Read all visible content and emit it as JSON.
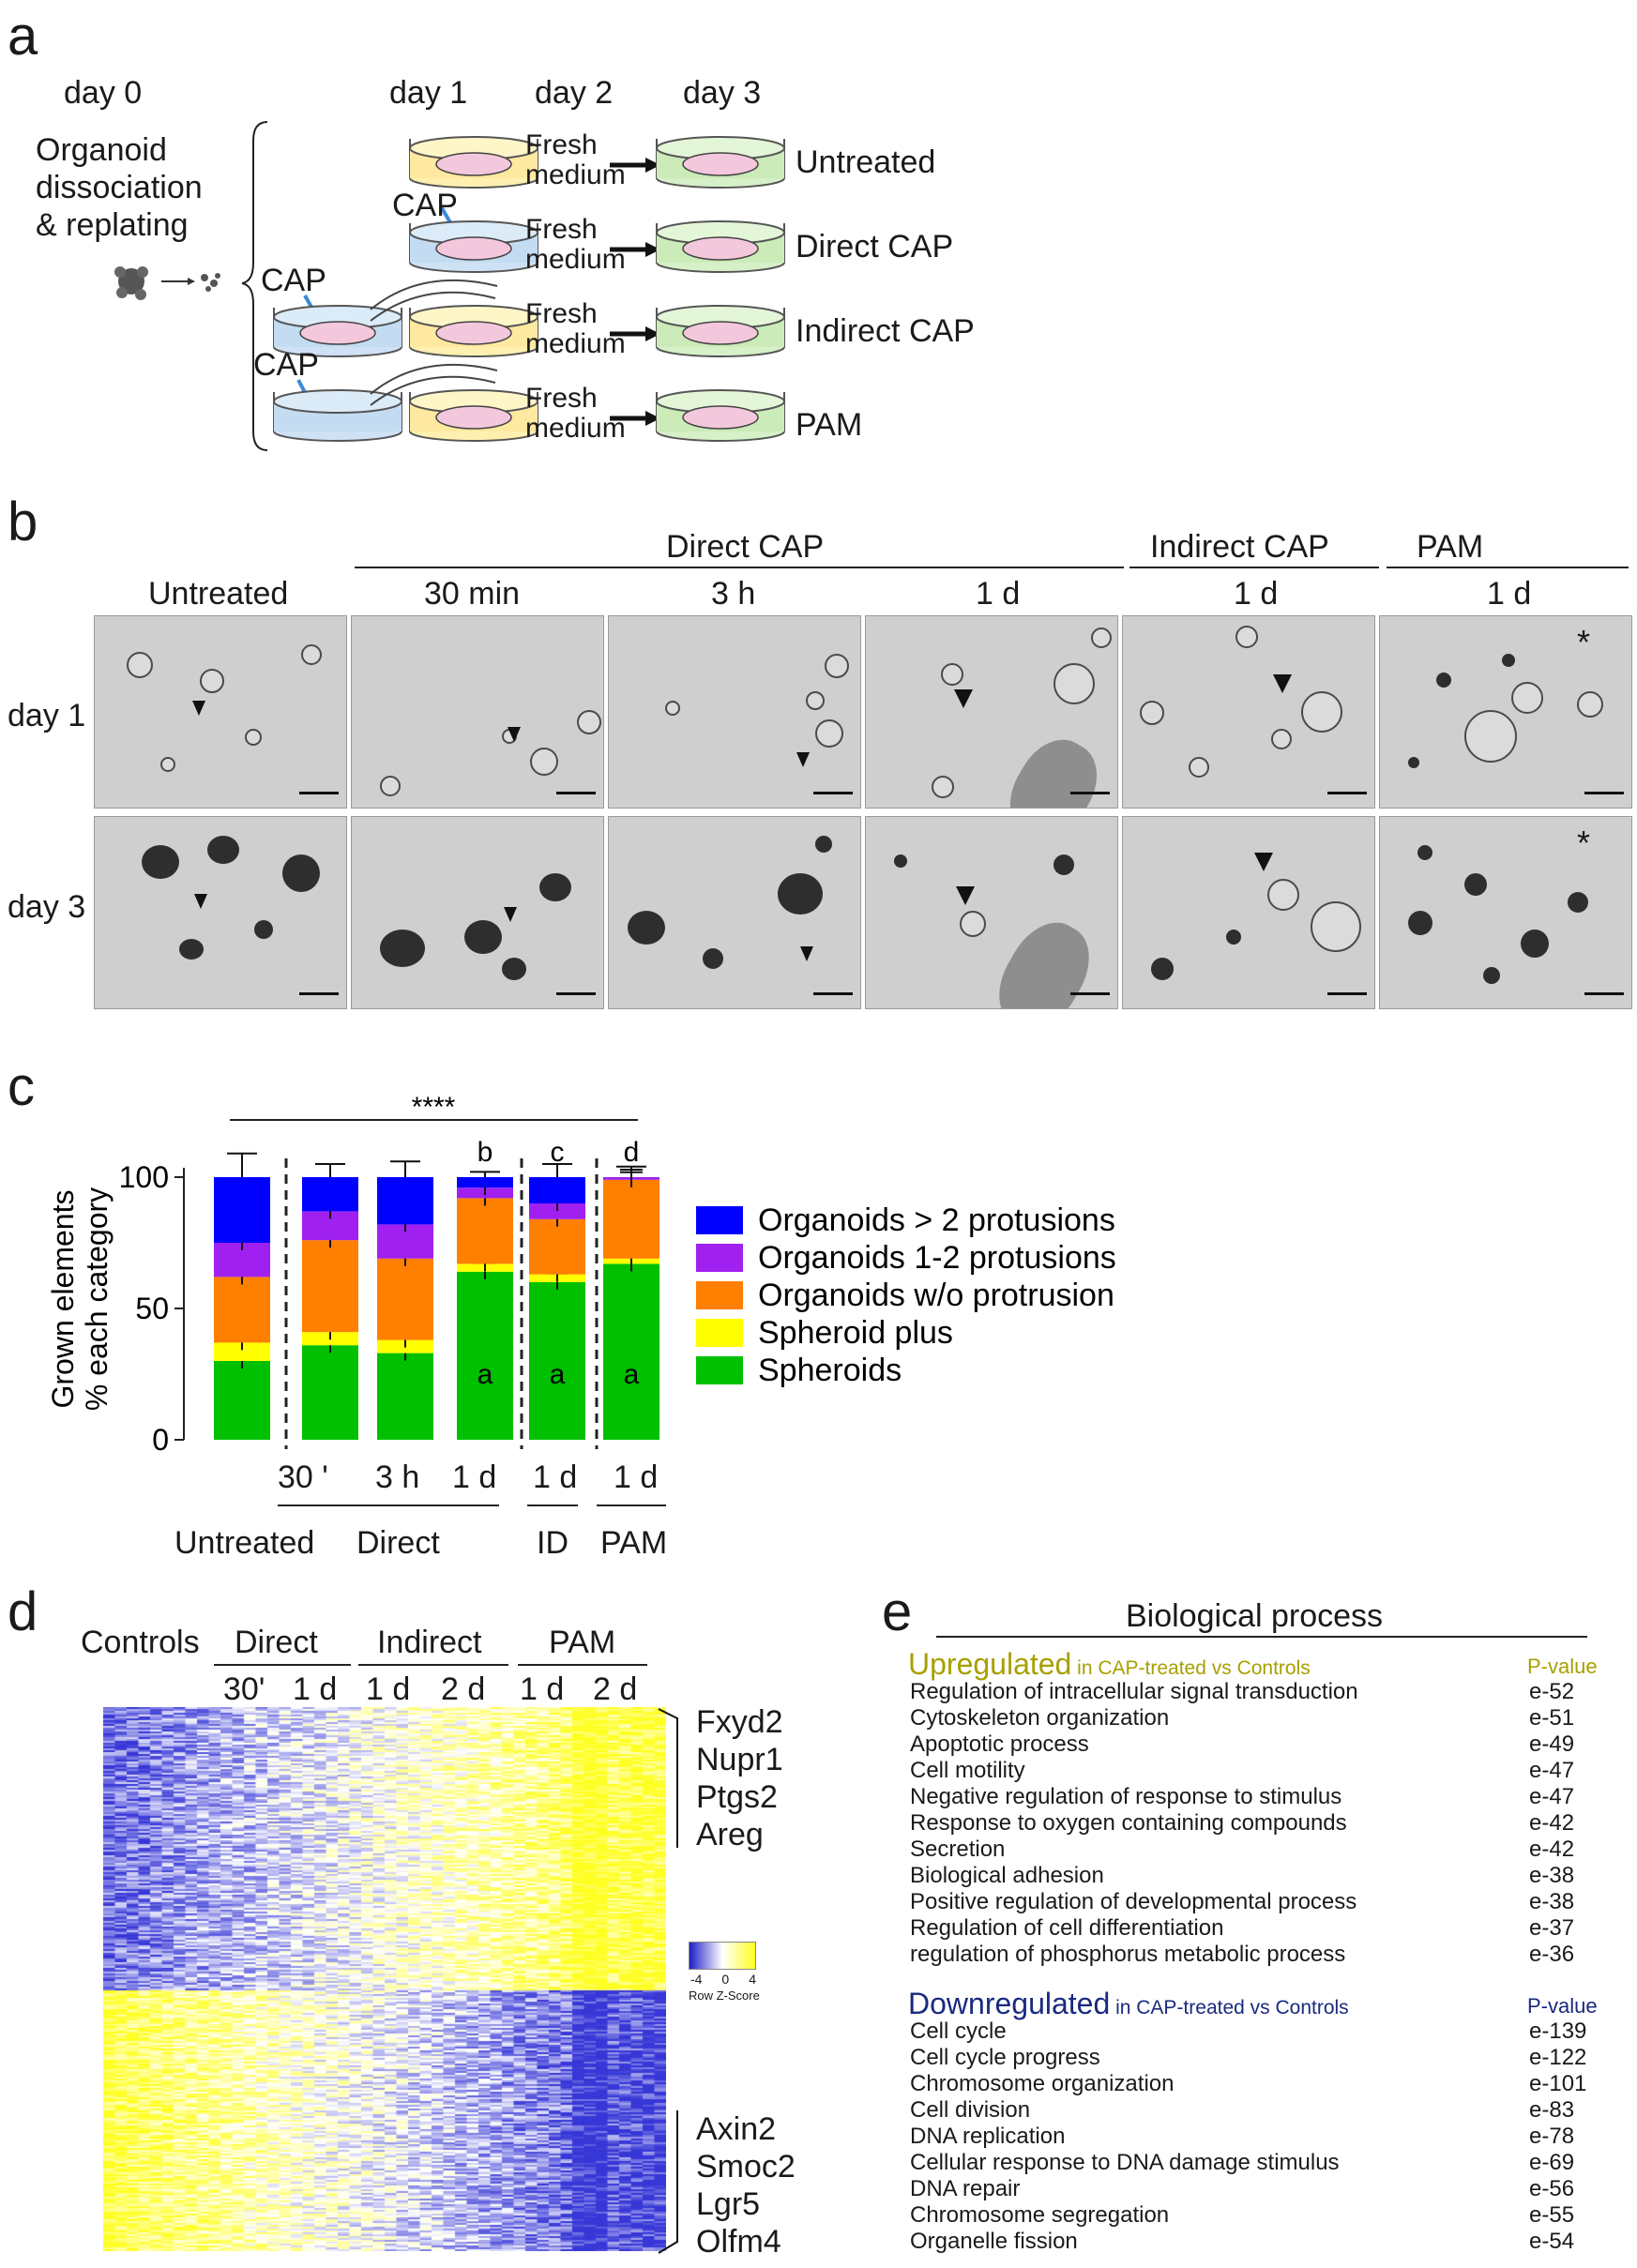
{
  "panel_a": {
    "label": "a",
    "days": [
      "day 0",
      "day 1",
      "day 2",
      "day 3"
    ],
    "step_text": [
      "Organoid",
      "dissociation",
      "& replating"
    ],
    "cap": "CAP",
    "fresh": "Fresh",
    "medium": "medium",
    "rows": [
      "Untreated",
      "Direct CAP",
      "Indirect CAP",
      "PAM"
    ]
  },
  "panel_b": {
    "label": "b",
    "groups": [
      "Direct CAP",
      "Indirect CAP",
      "PAM"
    ],
    "columns": [
      "Untreated",
      "30 min",
      "3 h",
      "1 d",
      "1 d",
      "1 d"
    ],
    "rows": [
      "day 1",
      "day 3"
    ],
    "star": "*"
  },
  "panel_c": {
    "label": "c",
    "significance": "****",
    "ylabel_line1": "Grown elements",
    "ylabel_line2": "% each category",
    "xlabel_top": [
      "30 '",
      "3 h",
      "1 d",
      "1 d",
      "1 d"
    ],
    "xlabel_groups": [
      "Untreated",
      "Direct",
      "ID",
      "PAM"
    ],
    "letters_top": [
      "b",
      "c",
      "d"
    ],
    "letter_a": "a"
  },
  "chart_data": {
    "type": "bar",
    "stacked": true,
    "categories": [
      "Untreated",
      "30 '",
      "3 h",
      "1 d",
      "1 d",
      "1 d"
    ],
    "ylim": [
      0,
      100
    ],
    "yticks": [
      0,
      50,
      100
    ],
    "xlabel": "",
    "ylabel": "Grown elements % each category",
    "series": [
      {
        "name": "Spheroids",
        "color": "#00c000",
        "values": [
          30,
          36,
          33,
          64,
          60,
          67
        ]
      },
      {
        "name": "Spheroid plus",
        "color": "#ffff00",
        "values": [
          7,
          5,
          5,
          3,
          3,
          2
        ]
      },
      {
        "name": "Organoids w/o protrusion",
        "color": "#ff7f00",
        "values": [
          25,
          35,
          31,
          25,
          21,
          30
        ]
      },
      {
        "name": "Organoids 1-2 protusions",
        "color": "#a020f0",
        "values": [
          13,
          11,
          13,
          4,
          6,
          1
        ]
      },
      {
        "name": "Organoids > 2 protusions",
        "color": "#0000ff",
        "values": [
          25,
          13,
          18,
          4,
          10,
          0
        ]
      }
    ],
    "errors_top": [
      9,
      5,
      6,
      2,
      5,
      4
    ],
    "legend": "right"
  },
  "panel_d": {
    "label": "d",
    "groups": [
      "Controls",
      "Direct",
      "Indirect",
      "PAM"
    ],
    "subcols": [
      "30'",
      "1 d",
      "1 d",
      "2 d",
      "1 d",
      "2 d"
    ],
    "genes_up": [
      "Fxyd2",
      "Nupr1",
      "Ptgs2",
      "Areg"
    ],
    "genes_down": [
      "Axin2",
      "Smoc2",
      "Lgr5",
      "Olfm4"
    ],
    "scale_ticks": [
      "-4",
      "0",
      "4"
    ],
    "scale_label": "Row Z-Score",
    "low_color": "#3030d0",
    "high_color": "#ffff30"
  },
  "panel_e": {
    "label": "e",
    "title": "Biological process",
    "up_head": "Upregulated",
    "up_sub": " in CAP-treated vs Controls",
    "down_head": "Downregulated",
    "down_sub": " in CAP-treated vs Controls",
    "pvalue": "P-value",
    "up_color": "#a8a000",
    "down_color": "#1a2a80",
    "up": [
      [
        "Regulation of intracellular signal transduction",
        "e-52"
      ],
      [
        "Cytoskeleton organization",
        "e-51"
      ],
      [
        "Apoptotic process",
        "e-49"
      ],
      [
        "Cell motility",
        "e-47"
      ],
      [
        "Negative regulation of response to stimulus",
        "e-47"
      ],
      [
        "Response to oxygen containing compounds",
        "e-42"
      ],
      [
        "Secretion",
        "e-42"
      ],
      [
        "Biological adhesion",
        "e-38"
      ],
      [
        "Positive regulation of developmental process",
        "e-38"
      ],
      [
        "Regulation of cell differentiation",
        "e-37"
      ],
      [
        "regulation of phosphorus metabolic process",
        "e-36"
      ]
    ],
    "down": [
      [
        "Cell cycle",
        "e-139"
      ],
      [
        "Cell cycle progress",
        "e-122"
      ],
      [
        "Chromosome organization",
        "e-101"
      ],
      [
        "Cell division",
        "e-83"
      ],
      [
        "DNA replication",
        "e-78"
      ],
      [
        "Cellular response to DNA damage stimulus",
        "e-69"
      ],
      [
        "DNA repair",
        "e-56"
      ],
      [
        "Chromosome segregation",
        "e-55"
      ],
      [
        "Organelle fission",
        "e-54"
      ]
    ]
  }
}
